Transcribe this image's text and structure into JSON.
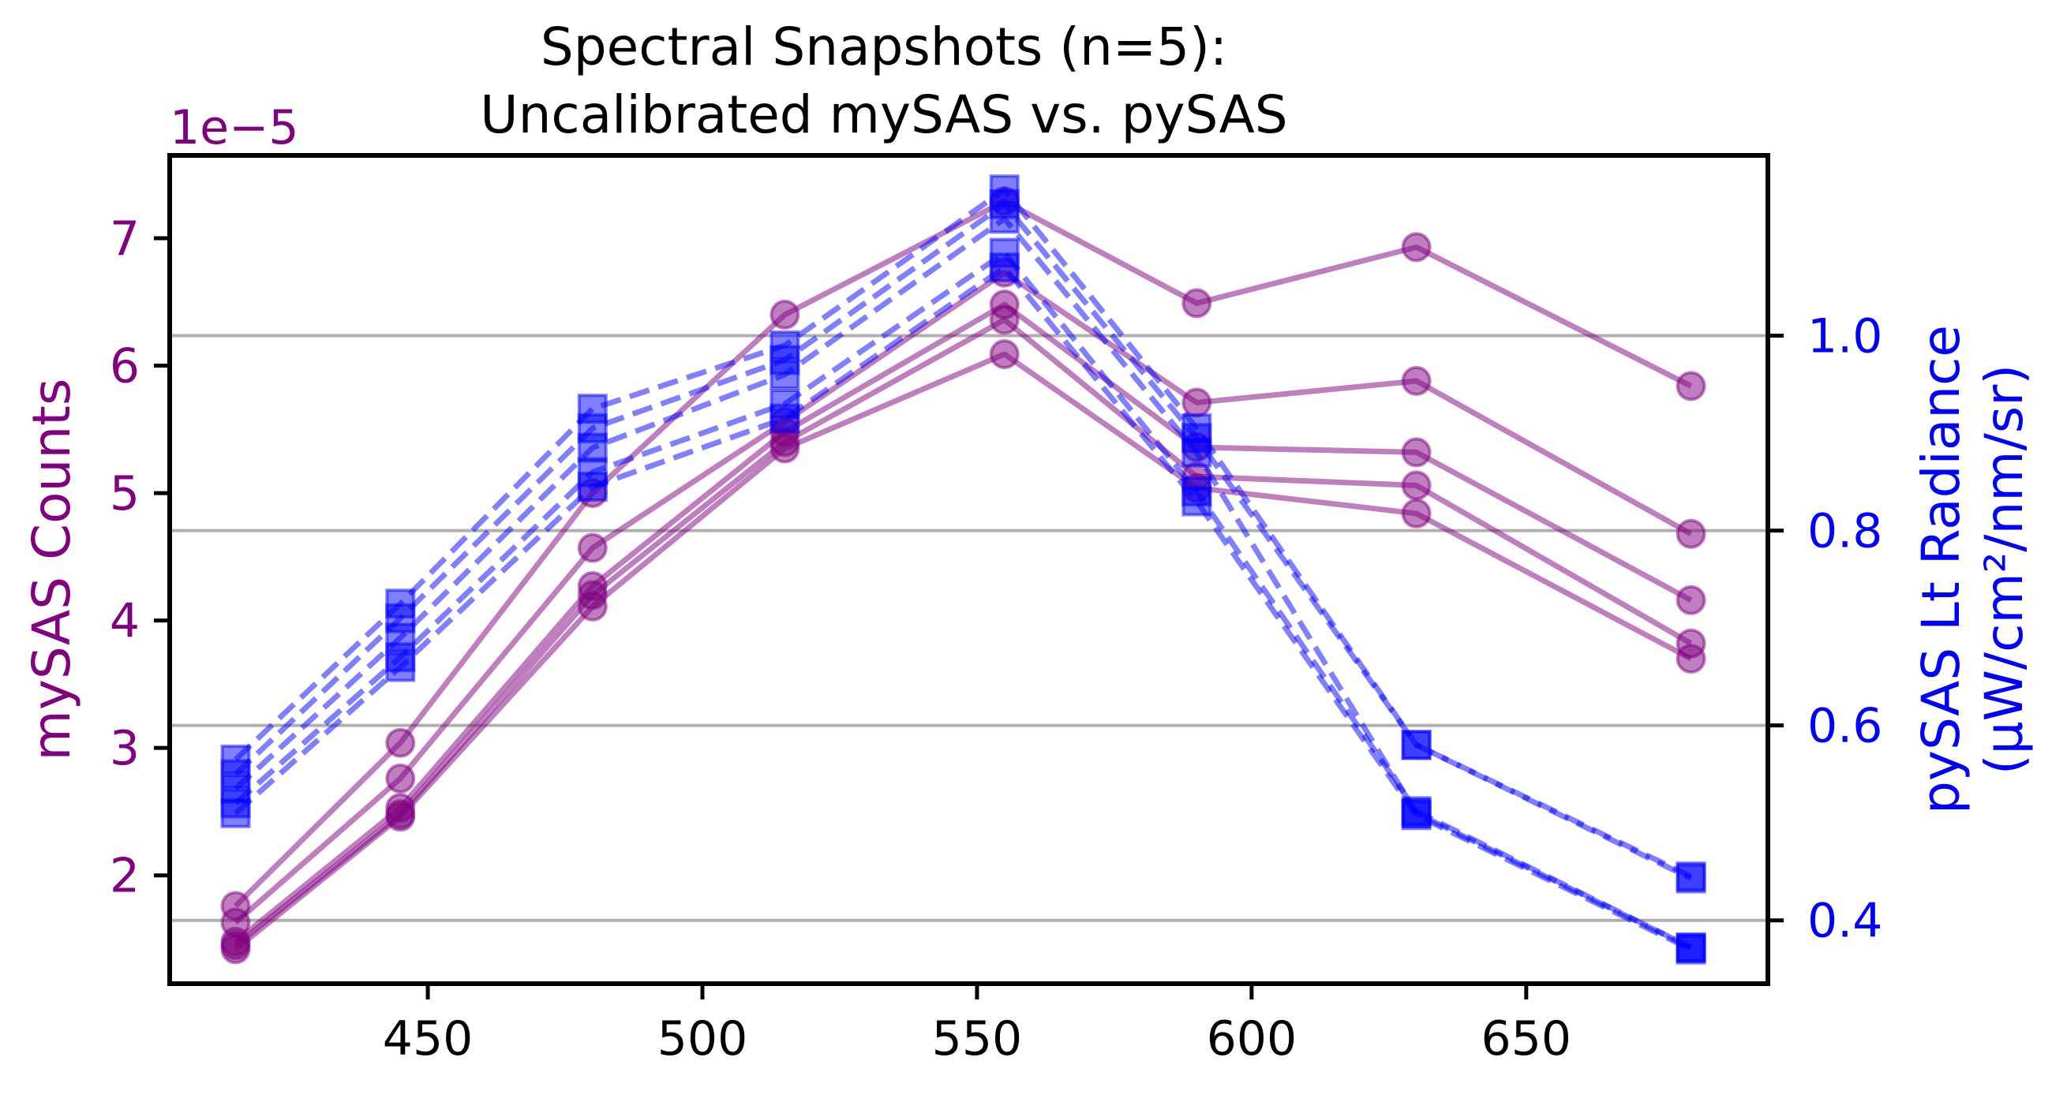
{
  "chart_data": {
    "type": "line",
    "title": "Spectral Snapshots (n=5):",
    "subtitle": "Uncalibrated mySAS vs. pySAS",
    "xlabel": "",
    "x": [
      415,
      445,
      480,
      515,
      555,
      590,
      630,
      680
    ],
    "xlim": [
      403,
      694
    ],
    "xticks": [
      450,
      500,
      550,
      600,
      650
    ],
    "left_axis": {
      "label": "mySAS Counts",
      "color": "#800080",
      "offset_text": "1e−5",
      "ylim": [
        1.15,
        7.65
      ],
      "ticks": [
        2,
        3,
        4,
        5,
        6,
        7
      ],
      "grid": false
    },
    "right_axis": {
      "label": "pySAS Lt Radiance",
      "label2": "(µW/cm²/nm/sr)",
      "color": "#0000ff",
      "ylim": [
        0.335,
        1.185
      ],
      "ticks": [
        0.4,
        0.6,
        0.8,
        1.0
      ],
      "tick_labels": [
        "0.4",
        "0.6",
        "0.8",
        "1.0"
      ],
      "grid": true
    },
    "mysas_series": [
      {
        "values": [
          1.76,
          3.04,
          5.0,
          6.4,
          7.29,
          6.49,
          6.93,
          5.84
        ]
      },
      {
        "values": [
          1.63,
          2.76,
          4.57,
          5.56,
          6.73,
          5.71,
          5.88,
          4.68
        ]
      },
      {
        "values": [
          1.48,
          2.53,
          4.27,
          5.48,
          6.48,
          5.36,
          5.32,
          4.16
        ]
      },
      {
        "values": [
          1.45,
          2.48,
          4.2,
          5.4,
          6.36,
          5.13,
          5.06,
          3.82
        ]
      },
      {
        "values": [
          1.42,
          2.46,
          4.11,
          5.35,
          6.09,
          5.04,
          4.84,
          3.7
        ]
      }
    ],
    "pysas_series": [
      {
        "values": [
          0.565,
          0.725,
          0.925,
          0.99,
          1.15,
          0.905,
          0.58,
          0.445
        ]
      },
      {
        "values": [
          0.55,
          0.71,
          0.905,
          0.975,
          1.135,
          0.895,
          0.58,
          0.443
        ]
      },
      {
        "values": [
          0.535,
          0.69,
          0.885,
          0.96,
          1.12,
          0.88,
          0.51,
          0.372
        ]
      },
      {
        "values": [
          0.52,
          0.67,
          0.86,
          0.93,
          1.085,
          0.84,
          0.512,
          0.372
        ]
      },
      {
        "values": [
          0.51,
          0.66,
          0.845,
          0.915,
          1.07,
          0.83,
          0.508,
          0.37
        ]
      }
    ]
  }
}
